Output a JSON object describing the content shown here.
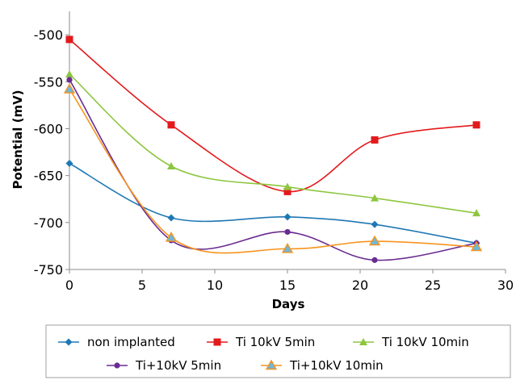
{
  "chart_data": {
    "type": "line",
    "title": "",
    "xlabel": "Days",
    "ylabel": "Potential (mV)",
    "xlim": [
      0,
      30
    ],
    "ylim": [
      -750,
      -475
    ],
    "x_ticks": [
      0,
      5,
      10,
      15,
      20,
      25,
      30
    ],
    "y_ticks": [
      -500,
      -550,
      -600,
      -650,
      -700,
      -750
    ],
    "x_tick_labels": [
      "0",
      "5",
      "10",
      "15",
      "20",
      "25",
      "30"
    ],
    "y_tick_labels": [
      "-500",
      "-550",
      "-600",
      "-650",
      "-700",
      "-750"
    ],
    "grid": false,
    "legend_position": "bottom",
    "series": [
      {
        "name": "non implanted",
        "color": "#1f78b4",
        "marker": "diamond",
        "x": [
          0,
          7,
          15,
          21,
          28
        ],
        "y": [
          -637,
          -695,
          -694,
          -702,
          -722
        ]
      },
      {
        "name": "Ti 10kV 5min",
        "color": "#e31a1c",
        "marker": "square",
        "x": [
          0,
          7,
          15,
          21,
          28
        ],
        "y": [
          -505,
          -596,
          -667,
          -612,
          -596
        ]
      },
      {
        "name": "Ti 10kV 10min",
        "color": "#8dc63f",
        "marker": "triangle",
        "x": [
          0,
          7,
          15,
          21,
          28
        ],
        "y": [
          -542,
          -640,
          -662,
          -674,
          -690
        ]
      },
      {
        "name": "Ti+10kV 5min",
        "color": "#6a2c91",
        "marker": "circle",
        "x": [
          0,
          7,
          15,
          21,
          28
        ],
        "y": [
          -548,
          -719,
          -710,
          -740,
          -722
        ]
      },
      {
        "name": "Ti+10kV 10min",
        "color": "#f7941d",
        "marker": "triangle-blue",
        "x": [
          0,
          7,
          15,
          21,
          28
        ],
        "y": [
          -558,
          -716,
          -728,
          -720,
          -726
        ]
      }
    ]
  }
}
